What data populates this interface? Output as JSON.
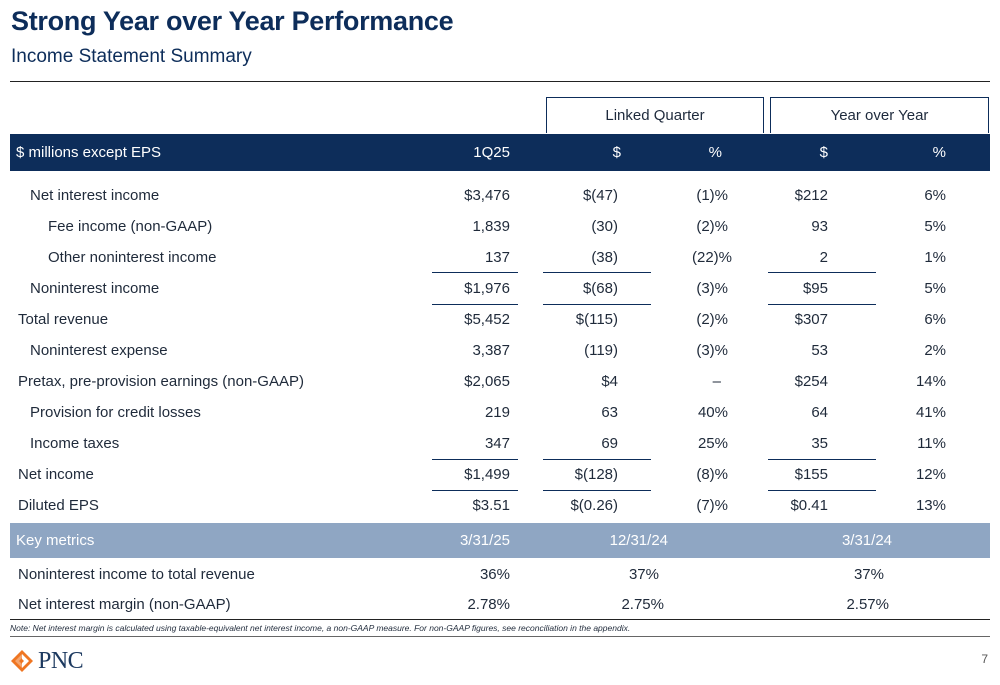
{
  "title": "Strong Year over Year Performance",
  "subtitle": "Income Statement Summary",
  "groups": {
    "linked_quarter": "Linked Quarter",
    "year_over_year": "Year over Year"
  },
  "header": {
    "label": "$ millions except EPS",
    "col1": "1Q25",
    "col2": "$",
    "col3": "%",
    "col4": "$",
    "col5": "%"
  },
  "rows": [
    {
      "label": "Net interest income",
      "v1": "$3,476",
      "v2": "$(47)",
      "v3": "(1)%",
      "v4": "$212",
      "v5": "6%"
    },
    {
      "label": "Fee income (non-GAAP)",
      "v1": "1,839",
      "v2": "(30)",
      "v3": "(2)%",
      "v4": "93",
      "v5": "5%"
    },
    {
      "label": "Other noninterest income",
      "v1": "137",
      "v2": "(38)",
      "v3": "(22)%",
      "v4": "2",
      "v5": "1%"
    },
    {
      "label": "Noninterest income",
      "v1": "$1,976",
      "v2": "$(68)",
      "v3": "(3)%",
      "v4": "$95",
      "v5": "5%"
    },
    {
      "label": "Total revenue",
      "v1": "$5,452",
      "v2": "$(115)",
      "v3": "(2)%",
      "v4": "$307",
      "v5": "6%"
    },
    {
      "label": "Noninterest expense",
      "v1": "3,387",
      "v2": "(119)",
      "v3": "(3)%",
      "v4": "53",
      "v5": "2%"
    },
    {
      "label": "Pretax, pre-provision earnings (non-GAAP)",
      "v1": "$2,065",
      "v2": "$4",
      "v3": "–",
      "v4": "$254",
      "v5": "14%"
    },
    {
      "label": "Provision for credit losses",
      "v1": "219",
      "v2": "63",
      "v3": "40%",
      "v4": "64",
      "v5": "41%"
    },
    {
      "label": "Income taxes",
      "v1": "347",
      "v2": "69",
      "v3": "25%",
      "v4": "35",
      "v5": "11%"
    },
    {
      "label": "Net income",
      "v1": "$1,499",
      "v2": "$(128)",
      "v3": "(8)%",
      "v4": "$155",
      "v5": "12%"
    },
    {
      "label": "Diluted EPS",
      "v1": "$3.51",
      "v2": "$(0.26)",
      "v3": "(7)%",
      "v4": "$0.41",
      "v5": "13%"
    }
  ],
  "key_metrics": {
    "label": "Key metrics",
    "dates": [
      "3/31/25",
      "12/31/24",
      "3/31/24"
    ],
    "rows": [
      {
        "label": "Noninterest income to total revenue",
        "values": [
          "36%",
          "37%",
          "37%"
        ]
      },
      {
        "label": "Net interest margin (non-GAAP)",
        "values": [
          "2.78%",
          "2.75%",
          "2.57%"
        ]
      }
    ]
  },
  "note": "Note: Net interest margin is calculated using taxable-equivalent net interest income, a non-GAAP measure. For non-GAAP figures, see reconciliation in the appendix.",
  "logo_text": "PNC",
  "page_number": "7",
  "colors": {
    "navy": "#0d2d5a",
    "key_metrics_bar": "#8fa6c3",
    "logo_orange": "#ef7622"
  }
}
